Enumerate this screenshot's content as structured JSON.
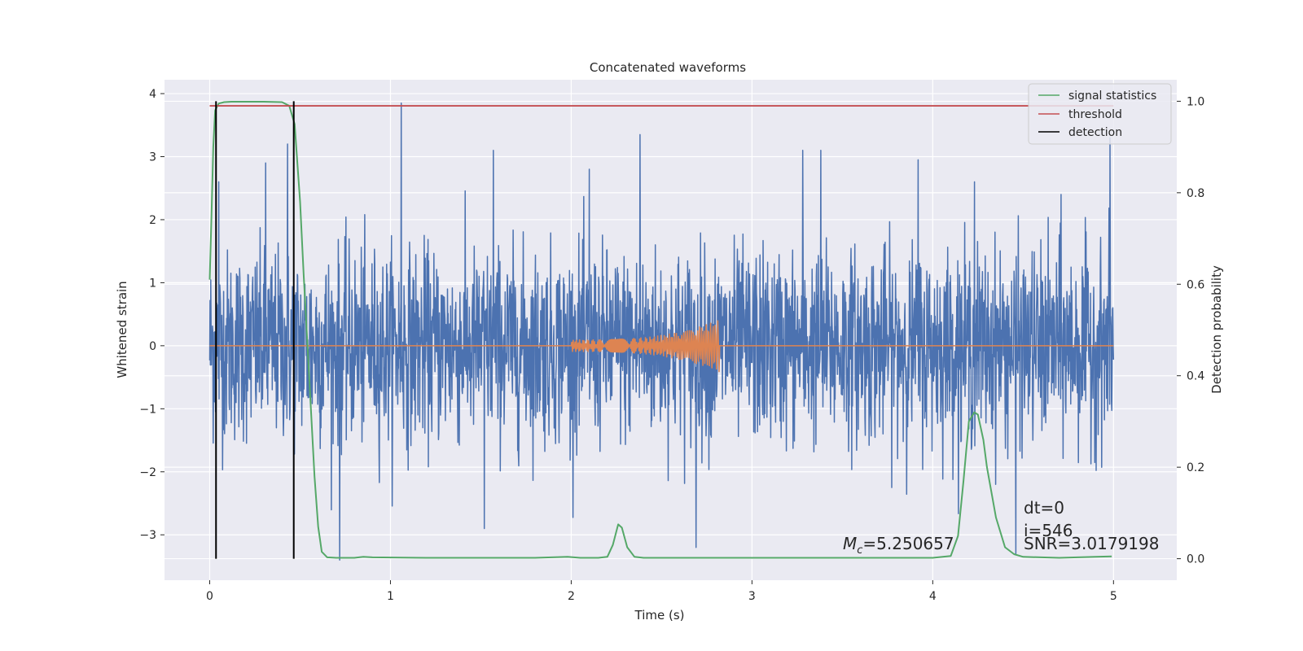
{
  "chart_data": {
    "type": "line",
    "title": "Concatenated waveforms",
    "xlabel": "Time (s)",
    "ylabel": "Whitened strain",
    "y2label": "Detection probability",
    "xlim": [
      -0.25,
      5.35
    ],
    "ylim": [
      -3.72,
      4.22
    ],
    "y2lim": [
      -0.047,
      1.047
    ],
    "xticks": [
      0,
      1,
      2,
      3,
      4,
      5
    ],
    "yticks": [
      -3,
      -2,
      -1,
      0,
      1,
      2,
      3,
      4
    ],
    "y2ticks": [
      0.0,
      0.2,
      0.4,
      0.6,
      0.8,
      1.0
    ],
    "ytick_labels": [
      "−3",
      "−2",
      "−1",
      "0",
      "1",
      "2",
      "3",
      "4"
    ],
    "y2tick_labels": [
      "0.0",
      "0.2",
      "0.4",
      "0.6",
      "0.8",
      "1.0"
    ],
    "grid": true,
    "legend_placement": "top-right",
    "series": [
      {
        "key": "strain",
        "type": "noise",
        "color": "#4c72b0",
        "axis": "left",
        "x_range": [
          0,
          5
        ],
        "sigma": 0.75,
        "spikes": [
          {
            "x": 0.05,
            "y": 2.6
          },
          {
            "x": 0.31,
            "y": 2.9
          },
          {
            "x": 0.43,
            "y": 3.2
          },
          {
            "x": 0.72,
            "y": -3.4
          },
          {
            "x": 1.06,
            "y": 3.85
          },
          {
            "x": 1.52,
            "y": -2.9
          },
          {
            "x": 1.57,
            "y": 3.1
          },
          {
            "x": 2.1,
            "y": 2.8
          },
          {
            "x": 2.38,
            "y": 3.35
          },
          {
            "x": 2.69,
            "y": -3.2
          },
          {
            "x": 3.28,
            "y": 3.1
          },
          {
            "x": 3.38,
            "y": 3.1
          },
          {
            "x": 3.92,
            "y": 2.95
          },
          {
            "x": 4.23,
            "y": 2.6
          },
          {
            "x": 4.46,
            "y": -3.3
          },
          {
            "x": 4.71,
            "y": 2.4
          },
          {
            "x": 4.98,
            "y": 3.3
          }
        ]
      },
      {
        "key": "injection",
        "type": "chirp",
        "color": "#dd8452",
        "axis": "left",
        "x_range": [
          0,
          5
        ],
        "chirp_start": 2.0,
        "chirp_end": 2.82,
        "amp_start": 0.1,
        "amp_peak": 0.42
      },
      {
        "key": "stat",
        "name": "signal statistics",
        "type": "line",
        "color": "#55a868",
        "axis": "right",
        "x": [
          0.0,
          0.01,
          0.02,
          0.03,
          0.05,
          0.08,
          0.12,
          0.2,
          0.3,
          0.4,
          0.44,
          0.47,
          0.5,
          0.52,
          0.55,
          0.58,
          0.6,
          0.62,
          0.65,
          0.7,
          0.8,
          0.85,
          0.9,
          1.2,
          1.5,
          1.8,
          1.98,
          2.05,
          2.15,
          2.2,
          2.23,
          2.26,
          2.28,
          2.31,
          2.35,
          2.4,
          2.5,
          3.0,
          3.5,
          4.0,
          4.1,
          4.14,
          4.17,
          4.2,
          4.23,
          4.25,
          4.28,
          4.3,
          4.35,
          4.4,
          4.45,
          4.5,
          4.6,
          4.7,
          4.8,
          4.9,
          4.99
        ],
        "values": [
          0.61,
          0.75,
          0.9,
          0.98,
          0.995,
          0.998,
          0.999,
          0.999,
          0.999,
          0.998,
          0.99,
          0.95,
          0.78,
          0.62,
          0.4,
          0.18,
          0.07,
          0.015,
          0.003,
          0.002,
          0.002,
          0.004,
          0.003,
          0.002,
          0.002,
          0.002,
          0.004,
          0.002,
          0.002,
          0.004,
          0.03,
          0.075,
          0.068,
          0.025,
          0.004,
          0.002,
          0.002,
          0.002,
          0.002,
          0.002,
          0.006,
          0.05,
          0.17,
          0.3,
          0.32,
          0.315,
          0.26,
          0.2,
          0.09,
          0.025,
          0.01,
          0.004,
          0.003,
          0.002,
          0.003,
          0.004,
          0.005
        ]
      },
      {
        "key": "threshold",
        "name": "threshold",
        "type": "hline",
        "color": "#c44e52",
        "axis": "right",
        "x_range": [
          0,
          5
        ],
        "value": 0.99
      },
      {
        "key": "detection",
        "name": "detection",
        "type": "vlines",
        "color": "#000000",
        "axis": "right",
        "x": [
          0.035,
          0.465
        ],
        "range": [
          0.0,
          1.0
        ]
      }
    ],
    "legend": [
      "signal statistics",
      "threshold",
      "detection"
    ],
    "annotations": {
      "mc": "=5.250657",
      "mc_symbol": "M",
      "mc_sub": "c",
      "dt": "dt=0",
      "i": "i=546",
      "snr": "SNR=3.0179198"
    }
  }
}
